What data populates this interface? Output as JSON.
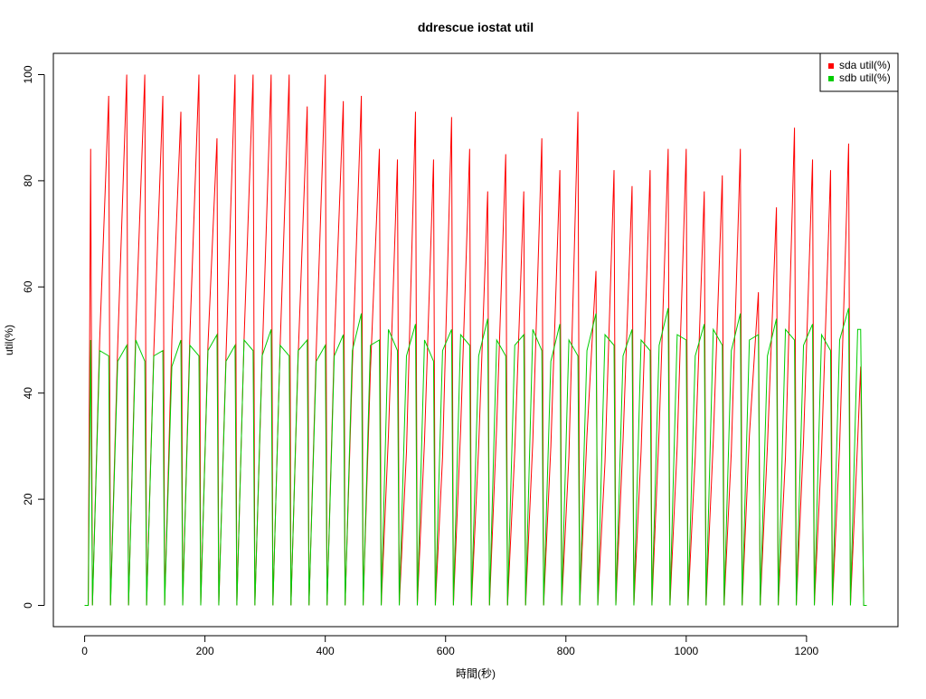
{
  "chart_data": {
    "type": "line",
    "title": "ddrescue iostat util",
    "x_label": "時間(秒)",
    "y_label": "util(%)",
    "x": [
      0,
      6,
      10,
      13,
      25,
      40,
      43,
      55,
      70,
      73,
      85,
      100,
      103,
      115,
      130,
      133,
      145,
      160,
      163,
      175,
      190,
      193,
      205,
      220,
      223,
      235,
      250,
      253,
      265,
      280,
      283,
      295,
      310,
      313,
      325,
      340,
      343,
      355,
      370,
      373,
      385,
      400,
      403,
      415,
      430,
      433,
      445,
      460,
      463,
      475,
      490,
      493,
      505,
      520,
      523,
      535,
      550,
      553,
      565,
      580,
      583,
      595,
      610,
      613,
      625,
      640,
      643,
      655,
      670,
      673,
      685,
      700,
      703,
      715,
      730,
      733,
      745,
      760,
      763,
      775,
      790,
      793,
      805,
      820,
      823,
      835,
      850,
      853,
      865,
      880,
      883,
      895,
      910,
      913,
      925,
      940,
      943,
      955,
      970,
      973,
      985,
      1000,
      1003,
      1015,
      1030,
      1033,
      1045,
      1060,
      1063,
      1075,
      1090,
      1093,
      1105,
      1120,
      1123,
      1135,
      1150,
      1153,
      1165,
      1180,
      1183,
      1195,
      1210,
      1213,
      1225,
      1240,
      1243,
      1255,
      1270,
      1273,
      1285,
      1290,
      1295,
      1300
    ],
    "series": [
      {
        "name": "sda util(%)",
        "color": "#ff0000",
        "values": [
          0,
          0,
          86,
          0,
          50,
          96,
          0,
          49,
          100,
          0,
          52,
          100,
          0,
          48,
          96,
          0,
          50,
          93,
          0,
          51,
          100,
          0,
          49,
          88,
          0,
          47,
          100,
          0,
          50,
          100,
          0,
          46,
          100,
          0,
          49,
          100,
          0,
          47,
          94,
          0,
          48,
          100,
          0,
          49,
          95,
          0,
          45,
          96,
          0,
          44,
          86,
          0,
          32,
          84,
          0,
          29,
          93,
          0,
          31,
          84,
          0,
          28,
          92,
          0,
          33,
          86,
          0,
          30,
          78,
          0,
          34,
          85,
          0,
          29,
          78,
          0,
          31,
          88,
          0,
          30,
          82,
          0,
          28,
          93,
          0,
          32,
          63,
          0,
          27,
          82,
          0,
          31,
          79,
          0,
          29,
          82,
          0,
          33,
          86,
          0,
          30,
          86,
          0,
          28,
          78,
          0,
          31,
          81,
          0,
          29,
          86,
          0,
          32,
          59,
          0,
          30,
          75,
          0,
          28,
          90,
          0,
          31,
          84,
          0,
          29,
          82,
          0,
          30,
          87,
          0,
          31,
          45,
          0,
          0
        ]
      },
      {
        "name": "sdb util(%)",
        "color": "#00cc00",
        "values": [
          0,
          0,
          50,
          0,
          48,
          47,
          0,
          46,
          49,
          0,
          50,
          46,
          0,
          47,
          48,
          0,
          45,
          50,
          0,
          49,
          47,
          0,
          48,
          51,
          0,
          46,
          49,
          0,
          50,
          48,
          0,
          47,
          52,
          0,
          49,
          47,
          0,
          48,
          50,
          0,
          46,
          49,
          0,
          47,
          51,
          0,
          48,
          55,
          0,
          49,
          50,
          0,
          52,
          48,
          0,
          47,
          53,
          0,
          50,
          46,
          0,
          48,
          52,
          0,
          51,
          49,
          0,
          47,
          54,
          0,
          50,
          47,
          0,
          49,
          51,
          0,
          52,
          48,
          0,
          46,
          53,
          0,
          50,
          47,
          0,
          48,
          55,
          0,
          51,
          49,
          0,
          47,
          52,
          0,
          50,
          48,
          0,
          49,
          56,
          0,
          51,
          50,
          0,
          47,
          53,
          0,
          52,
          49,
          0,
          48,
          55,
          0,
          50,
          51,
          0,
          47,
          54,
          0,
          52,
          50,
          0,
          49,
          53,
          0,
          51,
          48,
          0,
          50,
          56,
          0,
          52,
          52,
          0,
          0
        ]
      }
    ],
    "xlim": [
      -52,
      1352
    ],
    "ylim": [
      -4,
      104
    ],
    "xticks": [
      0,
      200,
      400,
      600,
      800,
      1000,
      1200
    ],
    "yticks": [
      0,
      20,
      40,
      60,
      80,
      100
    ],
    "legend": "top-right"
  }
}
